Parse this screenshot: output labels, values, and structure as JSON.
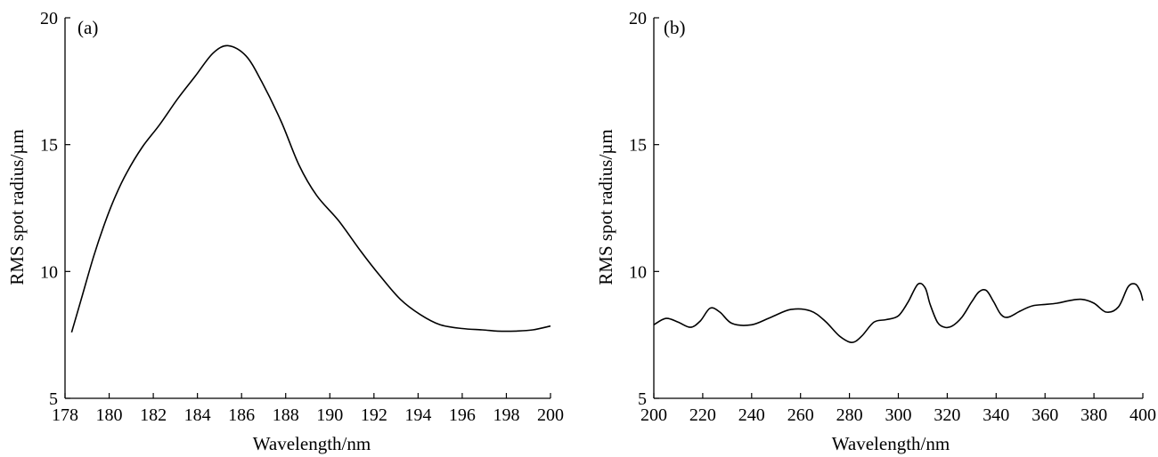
{
  "chart_data": [
    {
      "type": "line",
      "panel_label": "(a)",
      "xlabel": "Wavelength/nm",
      "ylabel": "RMS spot radius/µm",
      "xlim": [
        178,
        200
      ],
      "ylim": [
        5,
        20
      ],
      "xticks": [
        178,
        180,
        182,
        184,
        186,
        188,
        190,
        192,
        194,
        196,
        198,
        200
      ],
      "yticks": [
        5,
        10,
        15,
        20
      ],
      "grid": false,
      "line_color": "#000000",
      "series": [
        {
          "x": [
            178.3,
            178.8,
            179.3,
            179.8,
            180.3,
            180.8,
            181.5,
            182.3,
            183.1,
            183.9,
            184.7,
            185.4,
            186.2,
            186.9,
            187.8,
            188.6,
            189.4,
            190.4,
            191.4,
            192.3,
            193.2,
            194.1,
            195.0,
            196.0,
            196.9,
            197.6,
            198.4,
            199.2,
            200.0
          ],
          "y": [
            7.6,
            9.1,
            10.6,
            11.9,
            13.0,
            13.9,
            14.9,
            15.8,
            16.8,
            17.7,
            18.6,
            18.9,
            18.5,
            17.5,
            15.9,
            14.2,
            13.0,
            12.0,
            10.8,
            9.8,
            8.9,
            8.3,
            7.9,
            7.75,
            7.7,
            7.65,
            7.65,
            7.7,
            7.85
          ]
        }
      ]
    },
    {
      "type": "line",
      "panel_label": "(b)",
      "xlabel": "Wavelength/nm",
      "ylabel": "RMS spot radius/µm",
      "xlim": [
        200,
        400
      ],
      "ylim": [
        5,
        20
      ],
      "xticks": [
        200,
        220,
        240,
        260,
        280,
        300,
        320,
        340,
        360,
        380,
        400
      ],
      "yticks": [
        5,
        10,
        15,
        20
      ],
      "grid": false,
      "line_color": "#000000",
      "series": [
        {
          "x": [
            200,
            205,
            210,
            215,
            219,
            223,
            227,
            232,
            240,
            248,
            256,
            264,
            270,
            276,
            281,
            285,
            290,
            295,
            300,
            304,
            308,
            311,
            313,
            316,
            319,
            322,
            326,
            330,
            333,
            336,
            339,
            342,
            345,
            350,
            355,
            360,
            365,
            370,
            375,
            380,
            385,
            390,
            394,
            397,
            399,
            400
          ],
          "y": [
            7.9,
            8.15,
            8.0,
            7.8,
            8.05,
            8.55,
            8.4,
            7.95,
            7.9,
            8.2,
            8.5,
            8.45,
            8.05,
            7.45,
            7.2,
            7.45,
            8.0,
            8.1,
            8.25,
            8.8,
            9.5,
            9.35,
            8.7,
            8.0,
            7.8,
            7.85,
            8.2,
            8.8,
            9.2,
            9.25,
            8.8,
            8.3,
            8.2,
            8.45,
            8.65,
            8.7,
            8.75,
            8.85,
            8.9,
            8.75,
            8.4,
            8.6,
            9.4,
            9.5,
            9.2,
            8.85
          ]
        }
      ]
    }
  ]
}
